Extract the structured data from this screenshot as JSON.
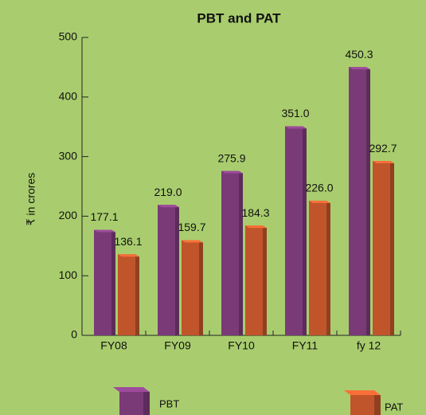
{
  "chart_data": {
    "type": "bar",
    "title": "PBT and PAT",
    "y_label": "₹ in crores",
    "categories": [
      "FY08",
      "FY09",
      "FY10",
      "FY11",
      "fy 12"
    ],
    "series": [
      {
        "name": "PBT",
        "color": "#7a3a78",
        "values": [
          177.1,
          219.0,
          275.9,
          351.0,
          450.3
        ],
        "value_labels": [
          "177.1",
          "219.0",
          "275.9",
          "351.0",
          "450.3"
        ]
      },
      {
        "name": "PAT",
        "color": "#c0552b",
        "values": [
          136.1,
          159.7,
          184.3,
          226.0,
          292.7
        ],
        "value_labels": [
          "136.1",
          "159.7",
          "184.3",
          "226.0",
          "292.7"
        ]
      }
    ],
    "ylim": [
      0,
      500
    ],
    "yticks": [
      0,
      100,
      200,
      300,
      400,
      500
    ],
    "grid": false
  }
}
